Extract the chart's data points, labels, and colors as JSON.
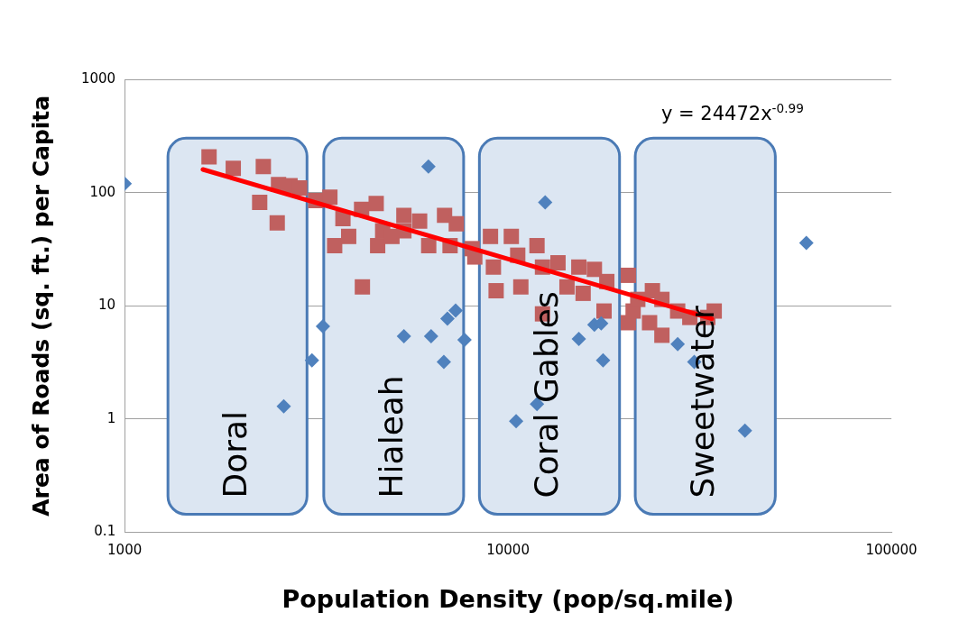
{
  "chart_data": {
    "type": "scatter",
    "xlabel": "Population Density (pop/sq.mile)",
    "ylabel": "Area of Roads (sq. ft.) per Capita",
    "log": "xy",
    "grid": "y",
    "xlim": [
      1000,
      100000
    ],
    "xticks": [
      1000,
      10000,
      100000
    ],
    "ylim": [
      0.1,
      1000
    ],
    "yticks": [
      0.1,
      1,
      10,
      100,
      1000
    ],
    "series": [
      {
        "marker": "diamond",
        "color": "#4f81bd",
        "x": [
          1000,
          2600,
          3080,
          3290,
          6200,
          12500,
          5350,
          6300,
          6800,
          6950,
          7300,
          7700,
          11900,
          10500,
          15300,
          16800,
          17500,
          17700,
          60000,
          27700,
          30600,
          41500
        ],
        "values": [
          120,
          1.3,
          3.3,
          6.6,
          170,
          82,
          5.4,
          5.4,
          3.2,
          7.7,
          9.1,
          5.0,
          1.36,
          0.96,
          5.1,
          6.8,
          7,
          3.3,
          36,
          4.6,
          3.2,
          0.79
        ]
      },
      {
        "marker": "square",
        "color": "#c0605f",
        "x": [
          1660,
          1920,
          2300,
          2250,
          2500,
          2520,
          2700,
          2860,
          3150,
          3430,
          3530,
          3710,
          3840,
          4170,
          4150,
          4530,
          4570,
          4710,
          4980,
          5350,
          5350,
          5880,
          6210,
          6830,
          7060,
          7330,
          8060,
          8190,
          9310,
          9000,
          9160,
          10200,
          10800,
          10600,
          11900,
          12300,
          12300,
          13500,
          14250,
          15300,
          16800,
          15700,
          17800,
          18100,
          20600,
          20600,
          21200,
          21800,
          23400,
          23800,
          25200,
          25200,
          27700,
          29800,
          33200,
          34500
        ],
        "values": [
          207,
          164,
          170,
          82,
          54,
          118,
          115,
          110,
          85,
          91,
          34,
          59,
          41,
          14.7,
          71,
          80,
          34,
          46,
          41,
          63,
          46,
          56,
          34,
          63,
          34,
          53,
          32,
          27,
          13.6,
          41,
          22,
          41,
          14.7,
          28,
          34,
          22,
          8.5,
          24,
          14.7,
          22,
          21,
          12.9,
          9,
          16.4,
          18.6,
          7.1,
          9,
          11.4,
          7.1,
          13.6,
          11.4,
          5.5,
          9,
          7.9,
          7.9,
          9
        ]
      },
      {
        "type": "line",
        "marker": "none",
        "color": "#ff0000",
        "x": [
          1600,
          34000
        ],
        "values": [
          160,
          7.7
        ]
      }
    ],
    "bands": [
      {
        "axis": "x",
        "from": 1297,
        "to": 2990,
        "label": "Doral",
        "color": "#dce6f2"
      },
      {
        "axis": "x",
        "from": 3306,
        "to": 7660,
        "label": "Hialeah",
        "color": "#dce6f2"
      },
      {
        "axis": "x",
        "from": 8420,
        "to": 19540,
        "label": "Coral Gables",
        "color": "#dce6f2"
      },
      {
        "axis": "x",
        "from": 21470,
        "to": 49800,
        "label": "Sweetwater",
        "color": "#dce6f2"
      }
    ],
    "annotations": [
      "y = 24472x$^{-0.99}$"
    ]
  }
}
